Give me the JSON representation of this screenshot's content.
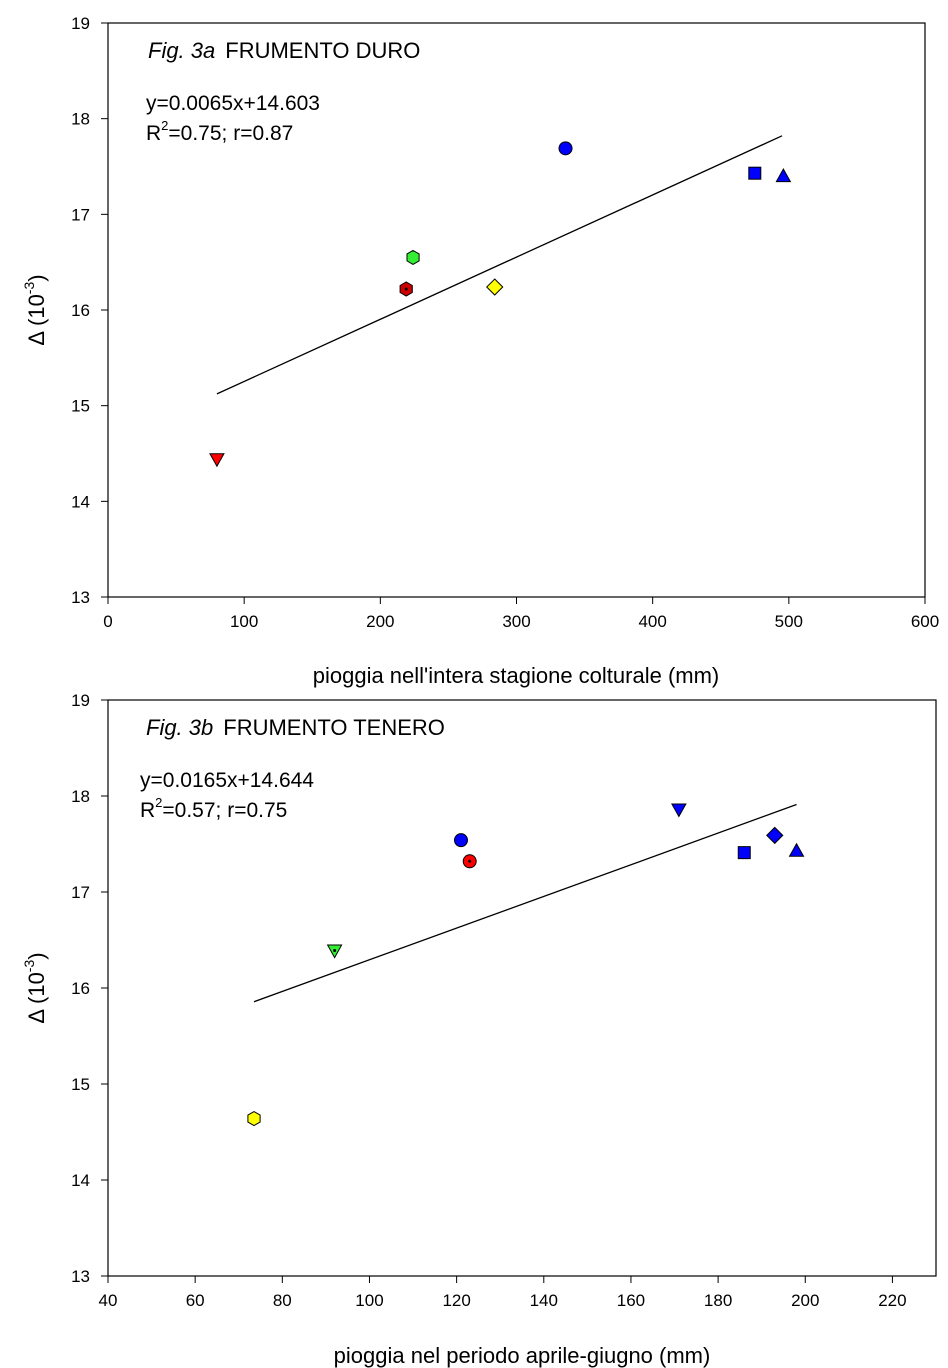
{
  "chart_data": [
    {
      "type": "scatter",
      "title_prefix": "Fig. 3a",
      "title": "FRUMENTO DURO",
      "equation": "y=0.0065x+14.603",
      "stats": {
        "r_squared_label": "R",
        "r_squared_rest": "=0.75; r=0.87",
        "r_squared_exp": "2"
      },
      "xlabel": "pioggia nell'intera stagione colturale (mm)",
      "ylabel": {
        "symbol": "Δ",
        "pre": "(10",
        "exp": "-3",
        "post": ")"
      },
      "xlim": [
        0,
        600
      ],
      "ylim": [
        13,
        19
      ],
      "xticks": [
        "0",
        "100",
        "200",
        "300",
        "400",
        "500",
        "600"
      ],
      "yticks": [
        "13",
        "14",
        "15",
        "16",
        "17",
        "18",
        "19"
      ],
      "grid": false,
      "regression": {
        "slope": 0.0065,
        "intercept": 14.603,
        "x_range": [
          80,
          495
        ]
      },
      "points": [
        {
          "x": 80,
          "y": 14.44,
          "marker": "triangle-down",
          "color": "#ff0000"
        },
        {
          "x": 219,
          "y": 16.22,
          "marker": "hexagon-dot",
          "color": "#cc0000"
        },
        {
          "x": 224,
          "y": 16.55,
          "marker": "hexagon",
          "color": "#33ee33"
        },
        {
          "x": 284,
          "y": 16.24,
          "marker": "diamond",
          "color": "#ffff00"
        },
        {
          "x": 336,
          "y": 17.69,
          "marker": "circle",
          "color": "#0000ff"
        },
        {
          "x": 475,
          "y": 17.43,
          "marker": "square",
          "color": "#0000ff"
        },
        {
          "x": 496,
          "y": 17.4,
          "marker": "triangle-up",
          "color": "#0000ff"
        }
      ]
    },
    {
      "type": "scatter",
      "title_prefix": "Fig. 3b",
      "title": "FRUMENTO TENERO",
      "equation": "y=0.0165x+14.644",
      "stats": {
        "r_squared_label": "R",
        "r_squared_rest": "=0.57; r=0.75",
        "r_squared_exp": "2"
      },
      "xlabel": "pioggia nel periodo aprile-giugno (mm)",
      "ylabel": {
        "symbol": "Δ",
        "pre": "(10",
        "exp": "-3",
        "post": ")"
      },
      "xlim": [
        40,
        230
      ],
      "ylim": [
        13,
        19
      ],
      "xticks": [
        "40",
        "60",
        "80",
        "100",
        "120",
        "140",
        "160",
        "180",
        "200",
        "220"
      ],
      "yticks": [
        "13",
        "14",
        "15",
        "16",
        "17",
        "18",
        "19"
      ],
      "grid": false,
      "regression": {
        "slope": 0.0165,
        "intercept": 14.644,
        "x_range": [
          73.5,
          198
        ]
      },
      "points": [
        {
          "x": 73.5,
          "y": 14.64,
          "marker": "hexagon",
          "color": "#ffff00"
        },
        {
          "x": 92,
          "y": 16.39,
          "marker": "triangle-down-dot",
          "color": "#33ee33"
        },
        {
          "x": 121,
          "y": 17.54,
          "marker": "circle",
          "color": "#0000ff"
        },
        {
          "x": 123,
          "y": 17.32,
          "marker": "circle-dot",
          "color": "#ff0000"
        },
        {
          "x": 171,
          "y": 17.86,
          "marker": "triangle-down",
          "color": "#0000ff"
        },
        {
          "x": 186,
          "y": 17.41,
          "marker": "square",
          "color": "#0000ff"
        },
        {
          "x": 193,
          "y": 17.59,
          "marker": "diamond",
          "color": "#0000ff"
        },
        {
          "x": 198,
          "y": 17.43,
          "marker": "triangle-up",
          "color": "#0000ff"
        }
      ]
    }
  ]
}
